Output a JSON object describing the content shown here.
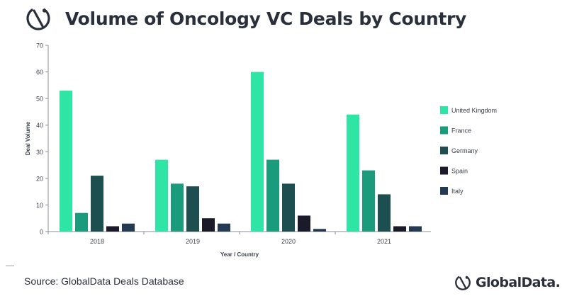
{
  "header": {
    "title": "Volume of Oncology VC Deals by Country",
    "logo_icon": "globaldata-mark-icon"
  },
  "footer": {
    "source": "Source: GlobalData Deals Database",
    "brand": "GlobalData."
  },
  "chart_data": {
    "type": "bar",
    "categories": [
      "2018",
      "2019",
      "2020",
      "2021"
    ],
    "series": [
      {
        "name": "United Kingdom",
        "color": "#2ee5a6",
        "values": [
          53,
          27,
          60,
          44
        ]
      },
      {
        "name": "France",
        "color": "#1a9b7c",
        "values": [
          7,
          18,
          27,
          23
        ]
      },
      {
        "name": "Germany",
        "color": "#1d4f50",
        "values": [
          21,
          17,
          18,
          14
        ]
      },
      {
        "name": "Spain",
        "color": "#1b1a2b",
        "values": [
          2,
          5,
          6,
          2
        ]
      },
      {
        "name": "Italy",
        "color": "#233a52",
        "values": [
          3,
          3,
          1,
          2
        ]
      }
    ],
    "xlabel": "Year / Country",
    "ylabel": "Deal Volume",
    "ylim": [
      0,
      70
    ],
    "yticks": [
      0,
      10,
      20,
      30,
      40,
      50,
      60,
      70
    ],
    "grid": false,
    "legend": "right"
  }
}
